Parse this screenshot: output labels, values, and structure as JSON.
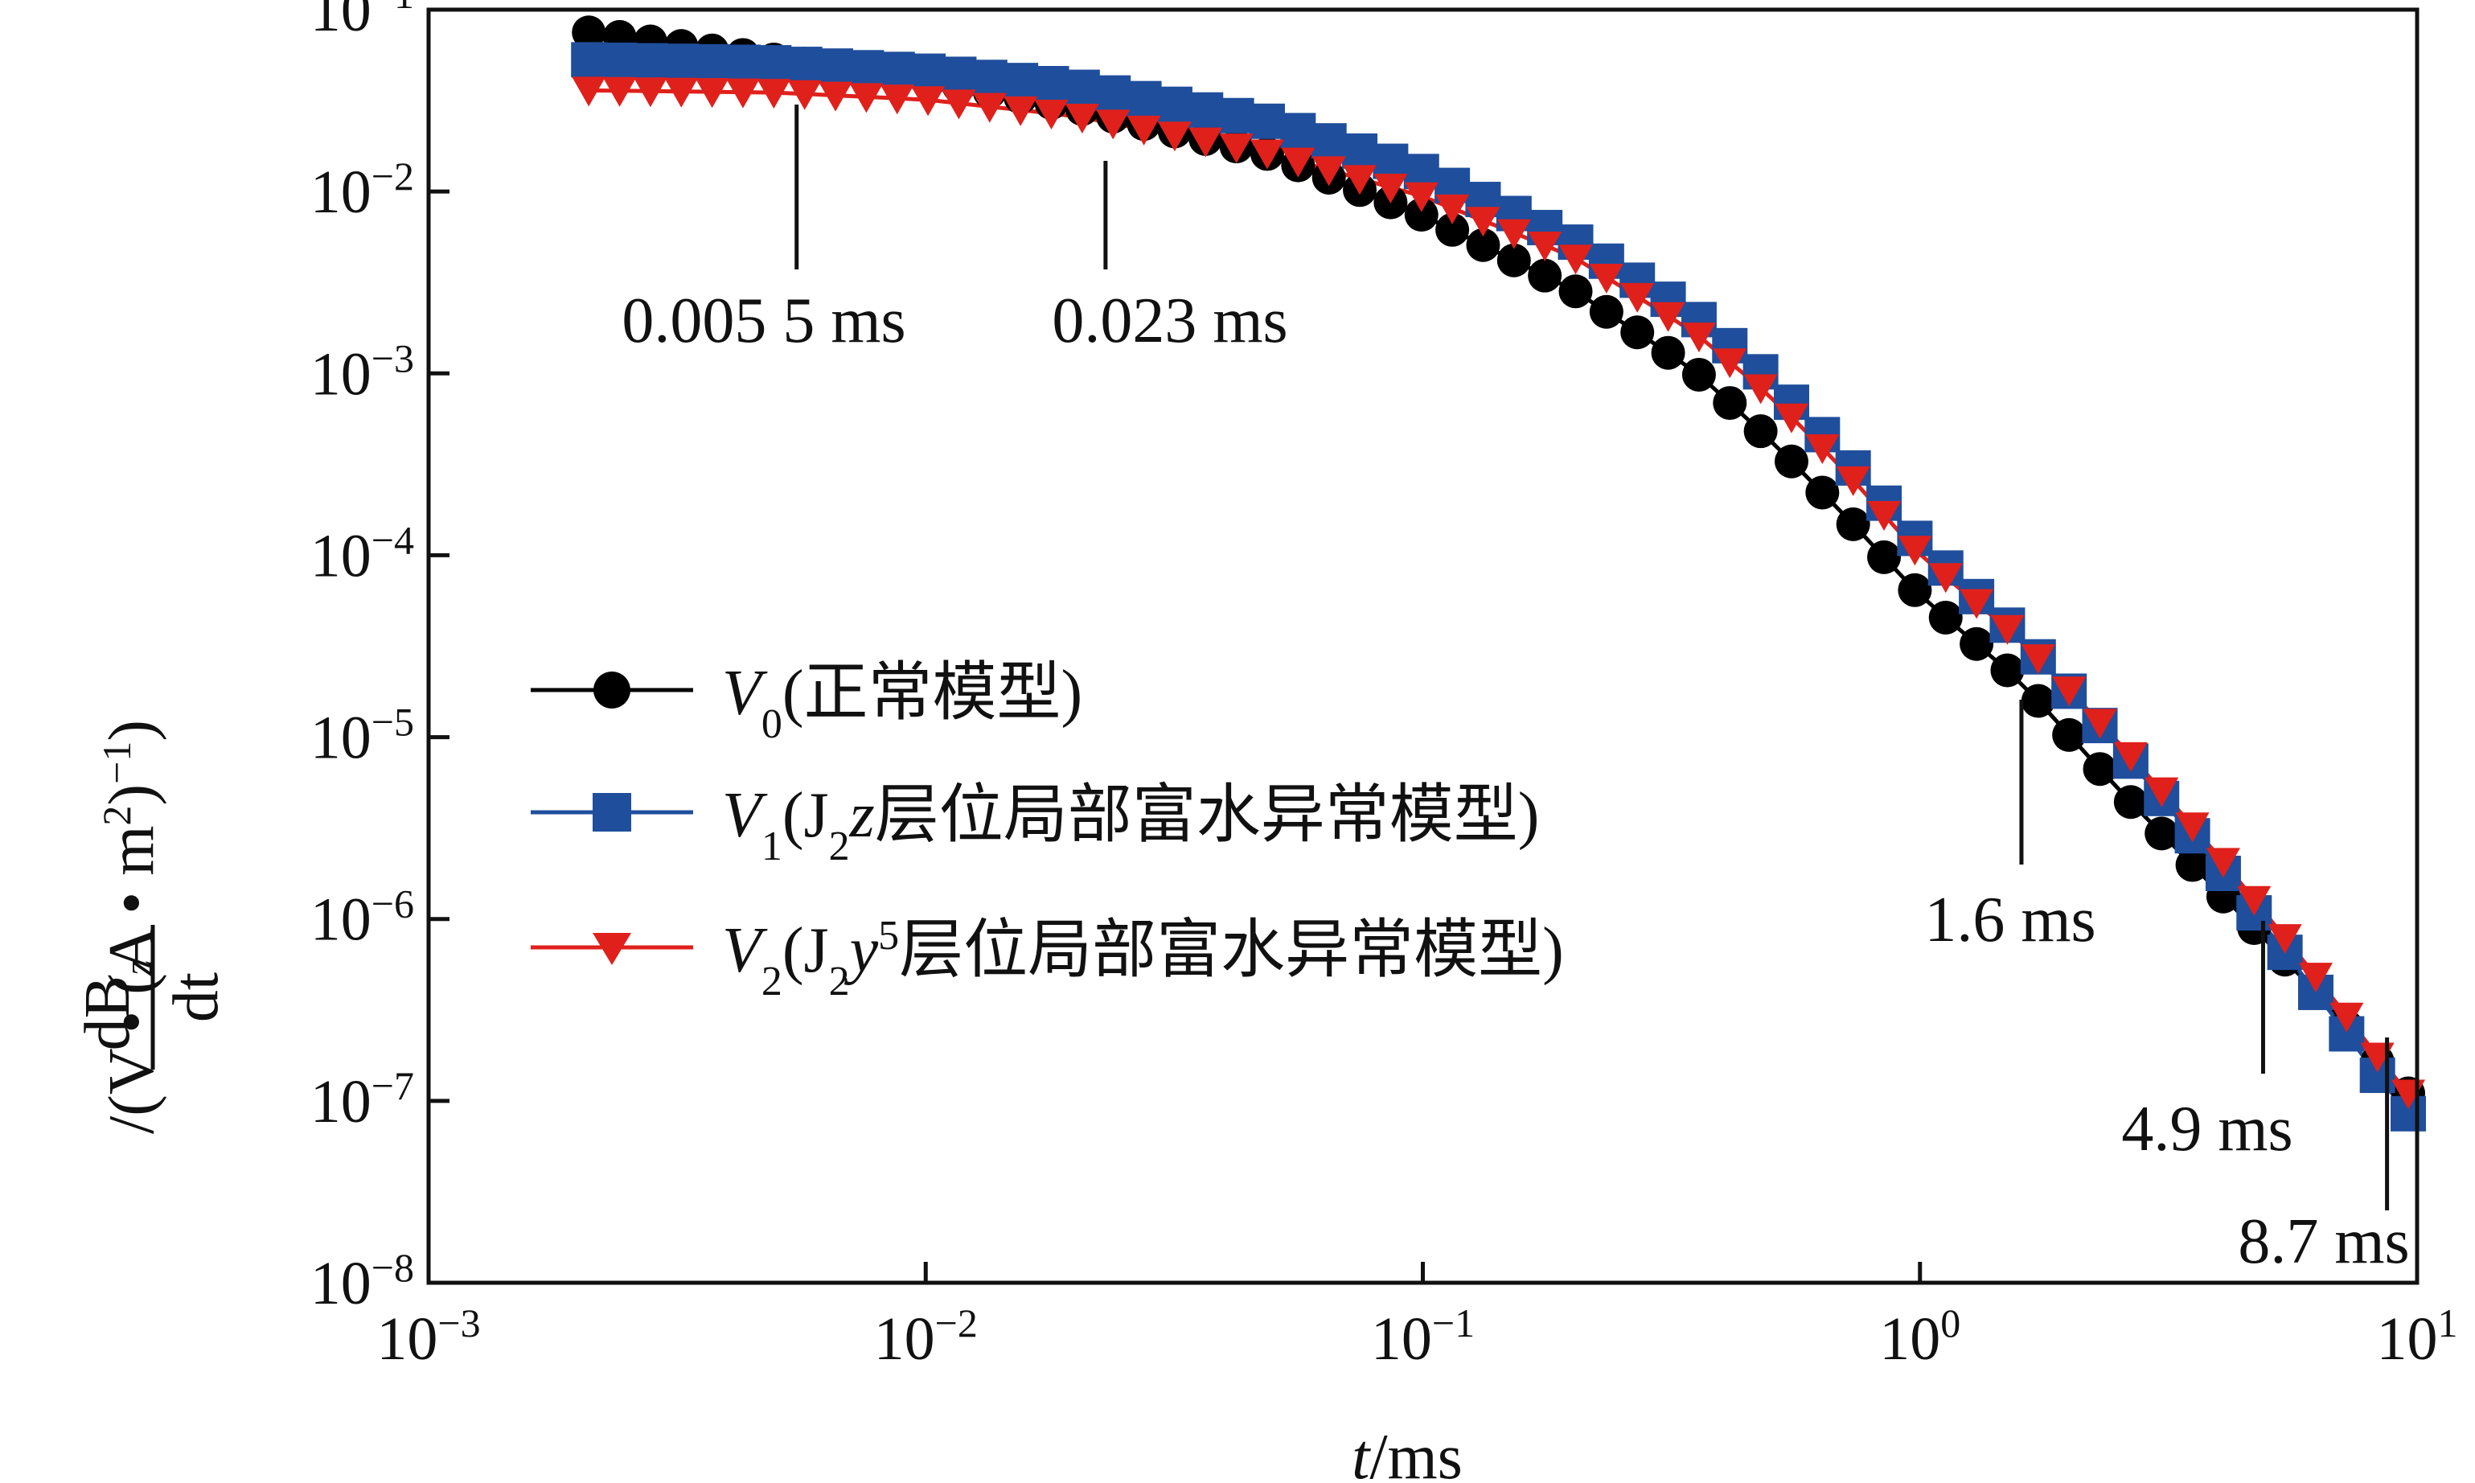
{
  "chart_data": {
    "type": "line",
    "scale": {
      "x": "log",
      "y": "log"
    },
    "xlim": [
      0.001,
      10
    ],
    "ylim": [
      1e-08,
      0.1
    ],
    "xlabel": {
      "var": "t",
      "unit": "/ms"
    },
    "ylabel": {
      "numerator": "dB",
      "numerator_sub": "z",
      "denominator": "dt",
      "unit": "/(V • (A • m",
      "unit_sup": "2",
      "unit_tail": ")",
      "unit_exp": "−1",
      "unit_close": ")"
    },
    "x_ticks": [
      {
        "base": "10",
        "exp": "−3",
        "value": 0.001
      },
      {
        "base": "10",
        "exp": "−2",
        "value": 0.01
      },
      {
        "base": "10",
        "exp": "−1",
        "value": 0.1
      },
      {
        "base": "10",
        "exp": "0",
        "value": 1
      },
      {
        "base": "10",
        "exp": "1",
        "value": 10
      }
    ],
    "y_ticks": [
      {
        "base": "10",
        "exp": "−1",
        "value": 0.1
      },
      {
        "base": "10",
        "exp": "−2",
        "value": 0.01
      },
      {
        "base": "10",
        "exp": "−3",
        "value": 0.001
      },
      {
        "base": "10",
        "exp": "−4",
        "value": 0.0001
      },
      {
        "base": "10",
        "exp": "−5",
        "value": 1e-05
      },
      {
        "base": "10",
        "exp": "−6",
        "value": 1e-06
      },
      {
        "base": "10",
        "exp": "−7",
        "value": 1e-07
      },
      {
        "base": "10",
        "exp": "−8",
        "value": 1e-08
      }
    ],
    "legend": {
      "placement": "center-left",
      "entries": [
        {
          "var": "V",
          "sub": "0",
          "text": "(正常模型)"
        },
        {
          "var": "V",
          "sub": "1",
          "pre": "(J",
          "pre_sub": "2",
          "italic": "z",
          "sup": "",
          "post": "层位局部富水异常模型)"
        },
        {
          "var": "V",
          "sub": "2",
          "pre": "(J",
          "pre_sub": "2",
          "italic": "y",
          "sup": "5",
          "post": "层位局部富水异常模型)"
        }
      ]
    },
    "series": [
      {
        "name": "V0",
        "color": "#000000",
        "marker": "circle",
        "curve": {
          "t": [
            0.0021,
            0.005,
            0.01,
            0.02,
            0.05,
            0.1,
            0.2,
            0.35,
            0.5,
            0.7,
            1.0,
            1.6,
            2.5,
            4.0,
            6.0,
            9.5
          ],
          "y": [
            0.075,
            0.053,
            0.041,
            0.029,
            0.0158,
            0.0074,
            0.0029,
            0.00105,
            0.00043,
            0.00017,
            6e-05,
            2e-05,
            5.2e-06,
            1.4e-06,
            4.5e-07,
            1.1e-07
          ]
        }
      },
      {
        "name": "V1",
        "color": "#1f4e9c",
        "marker": "square",
        "curve": {
          "t": [
            0.0021,
            0.005,
            0.01,
            0.02,
            0.05,
            0.1,
            0.2,
            0.35,
            0.5,
            0.7,
            1.0,
            1.6,
            2.5,
            4.0,
            6.0,
            9.5
          ],
          "y": [
            0.053,
            0.051,
            0.046,
            0.038,
            0.024,
            0.0128,
            0.0054,
            0.0021,
            0.00092,
            0.00035,
            0.000115,
            3.5e-05,
            9e-06,
            1.9e-06,
            4.6e-07,
            8.5e-08
          ]
        }
      },
      {
        "name": "V2",
        "color": "#e0201b",
        "marker": "triangle-down",
        "curve": {
          "t": [
            0.0021,
            0.005,
            0.01,
            0.02,
            0.05,
            0.1,
            0.2,
            0.35,
            0.5,
            0.7,
            1.0,
            1.6,
            2.5,
            4.0,
            6.0,
            9.5
          ],
          "y": [
            0.036,
            0.035,
            0.032,
            0.026,
            0.016,
            0.0094,
            0.0044,
            0.0017,
            0.00075,
            0.0003,
            0.0001,
            3.4e-05,
            9.5e-06,
            2.2e-06,
            5.6e-07,
            1.1e-07
          ]
        }
      }
    ],
    "annotations": [
      {
        "text": "0.005 5 ms",
        "t": 0.0055
      },
      {
        "text": "0.023 ms",
        "t": 0.023
      },
      {
        "text": "1.6 ms",
        "t": 1.6
      },
      {
        "text": "4.9 ms",
        "t": 4.9
      },
      {
        "text": "8.7 ms",
        "t": 8.7
      }
    ]
  }
}
